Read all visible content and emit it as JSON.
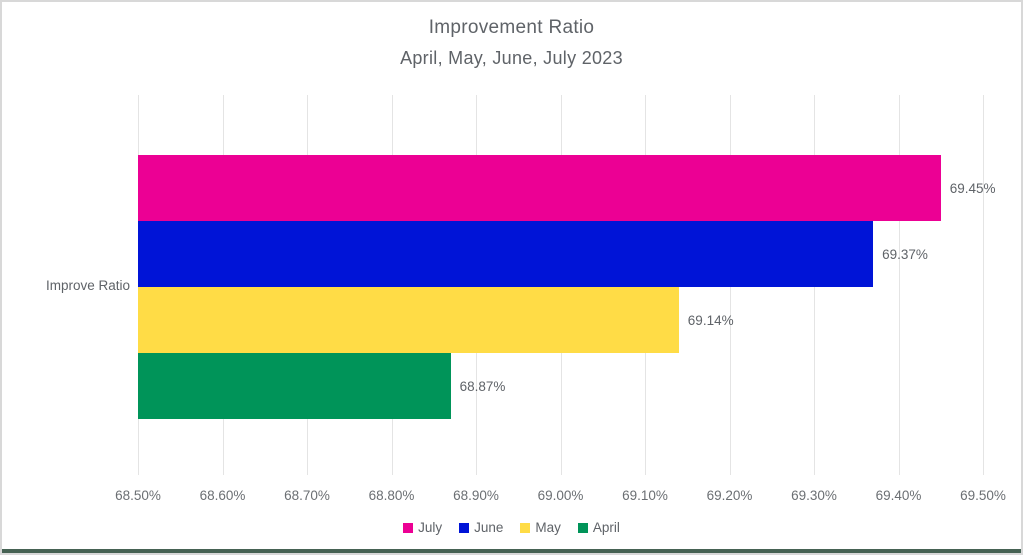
{
  "title": "Improvement Ratio",
  "subtitle": "April, May, June, July 2023",
  "category_label": "Improve Ratio",
  "colors": {
    "july_pink": "#EC0094",
    "june_blue": "#0014D7",
    "may_yellow": "#FFDC46",
    "april_green": "#009459",
    "text_gray": "#5f6368",
    "gridline_gray": "#e4e4e4",
    "bottom_edge_green": "#466253"
  },
  "chart_data": {
    "type": "bar",
    "orientation": "horizontal",
    "title": "Improvement Ratio",
    "subtitle": "April, May, June, July 2023",
    "category": "Improve Ratio",
    "series": [
      {
        "name": "July",
        "value": 69.45,
        "label": "69.45%",
        "color": "#EC0094"
      },
      {
        "name": "June",
        "value": 69.37,
        "label": "69.37%",
        "color": "#0014D7"
      },
      {
        "name": "May",
        "value": 69.14,
        "label": "69.14%",
        "color": "#FFDC46"
      },
      {
        "name": "April",
        "value": 68.87,
        "label": "68.87%",
        "color": "#009459"
      }
    ],
    "xlim": [
      68.5,
      69.5
    ],
    "x_ticks": [
      "68.50%",
      "68.60%",
      "68.70%",
      "68.80%",
      "68.90%",
      "69.00%",
      "69.10%",
      "69.20%",
      "69.30%",
      "69.40%",
      "69.50%"
    ],
    "grid": true,
    "legend_position": "bottom",
    "legend": [
      "July",
      "June",
      "May",
      "April"
    ]
  }
}
